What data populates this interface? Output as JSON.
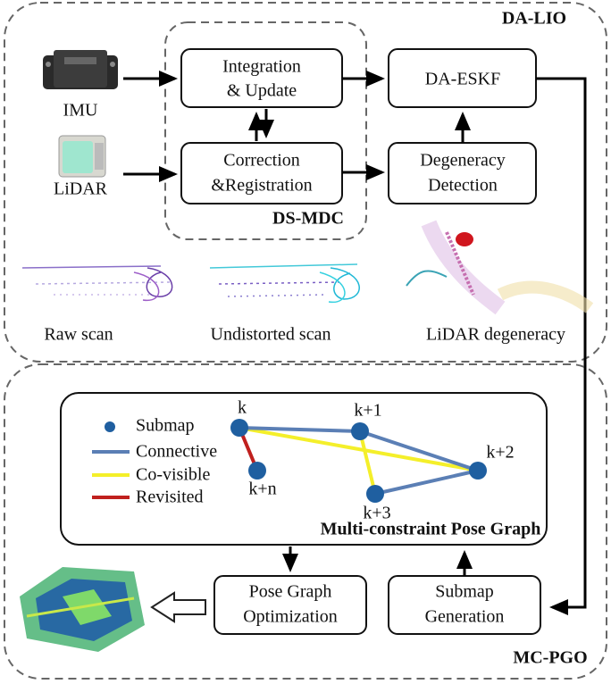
{
  "da_lio": {
    "label": "DA-LIO",
    "inputs": [
      "IMU",
      "LiDAR"
    ],
    "ds_mdc": {
      "label": "DS-MDC"
    },
    "boxes": {
      "integration": [
        "Integration",
        "& Update"
      ],
      "correction": [
        "Correction",
        "&Registration"
      ],
      "eskf": [
        "DA-ESKF"
      ],
      "degeneracy": [
        "Degeneracy",
        "Detection"
      ]
    },
    "captions": [
      "Raw scan",
      "Undistorted scan",
      "LiDAR degeneracy"
    ]
  },
  "mc_pgo": {
    "label": "MC-PGO",
    "pose_graph": {
      "title": "Multi-constraint Pose Graph",
      "legend": [
        "Submap",
        "Connective",
        "Co-visible",
        "Revisited"
      ],
      "nodes": [
        "k",
        "k+1",
        "k+2",
        "k+3",
        "k+n"
      ]
    },
    "boxes": {
      "optimization": [
        "Pose Graph",
        "Optimization"
      ],
      "generation": [
        "Submap",
        "Generation"
      ]
    }
  }
}
